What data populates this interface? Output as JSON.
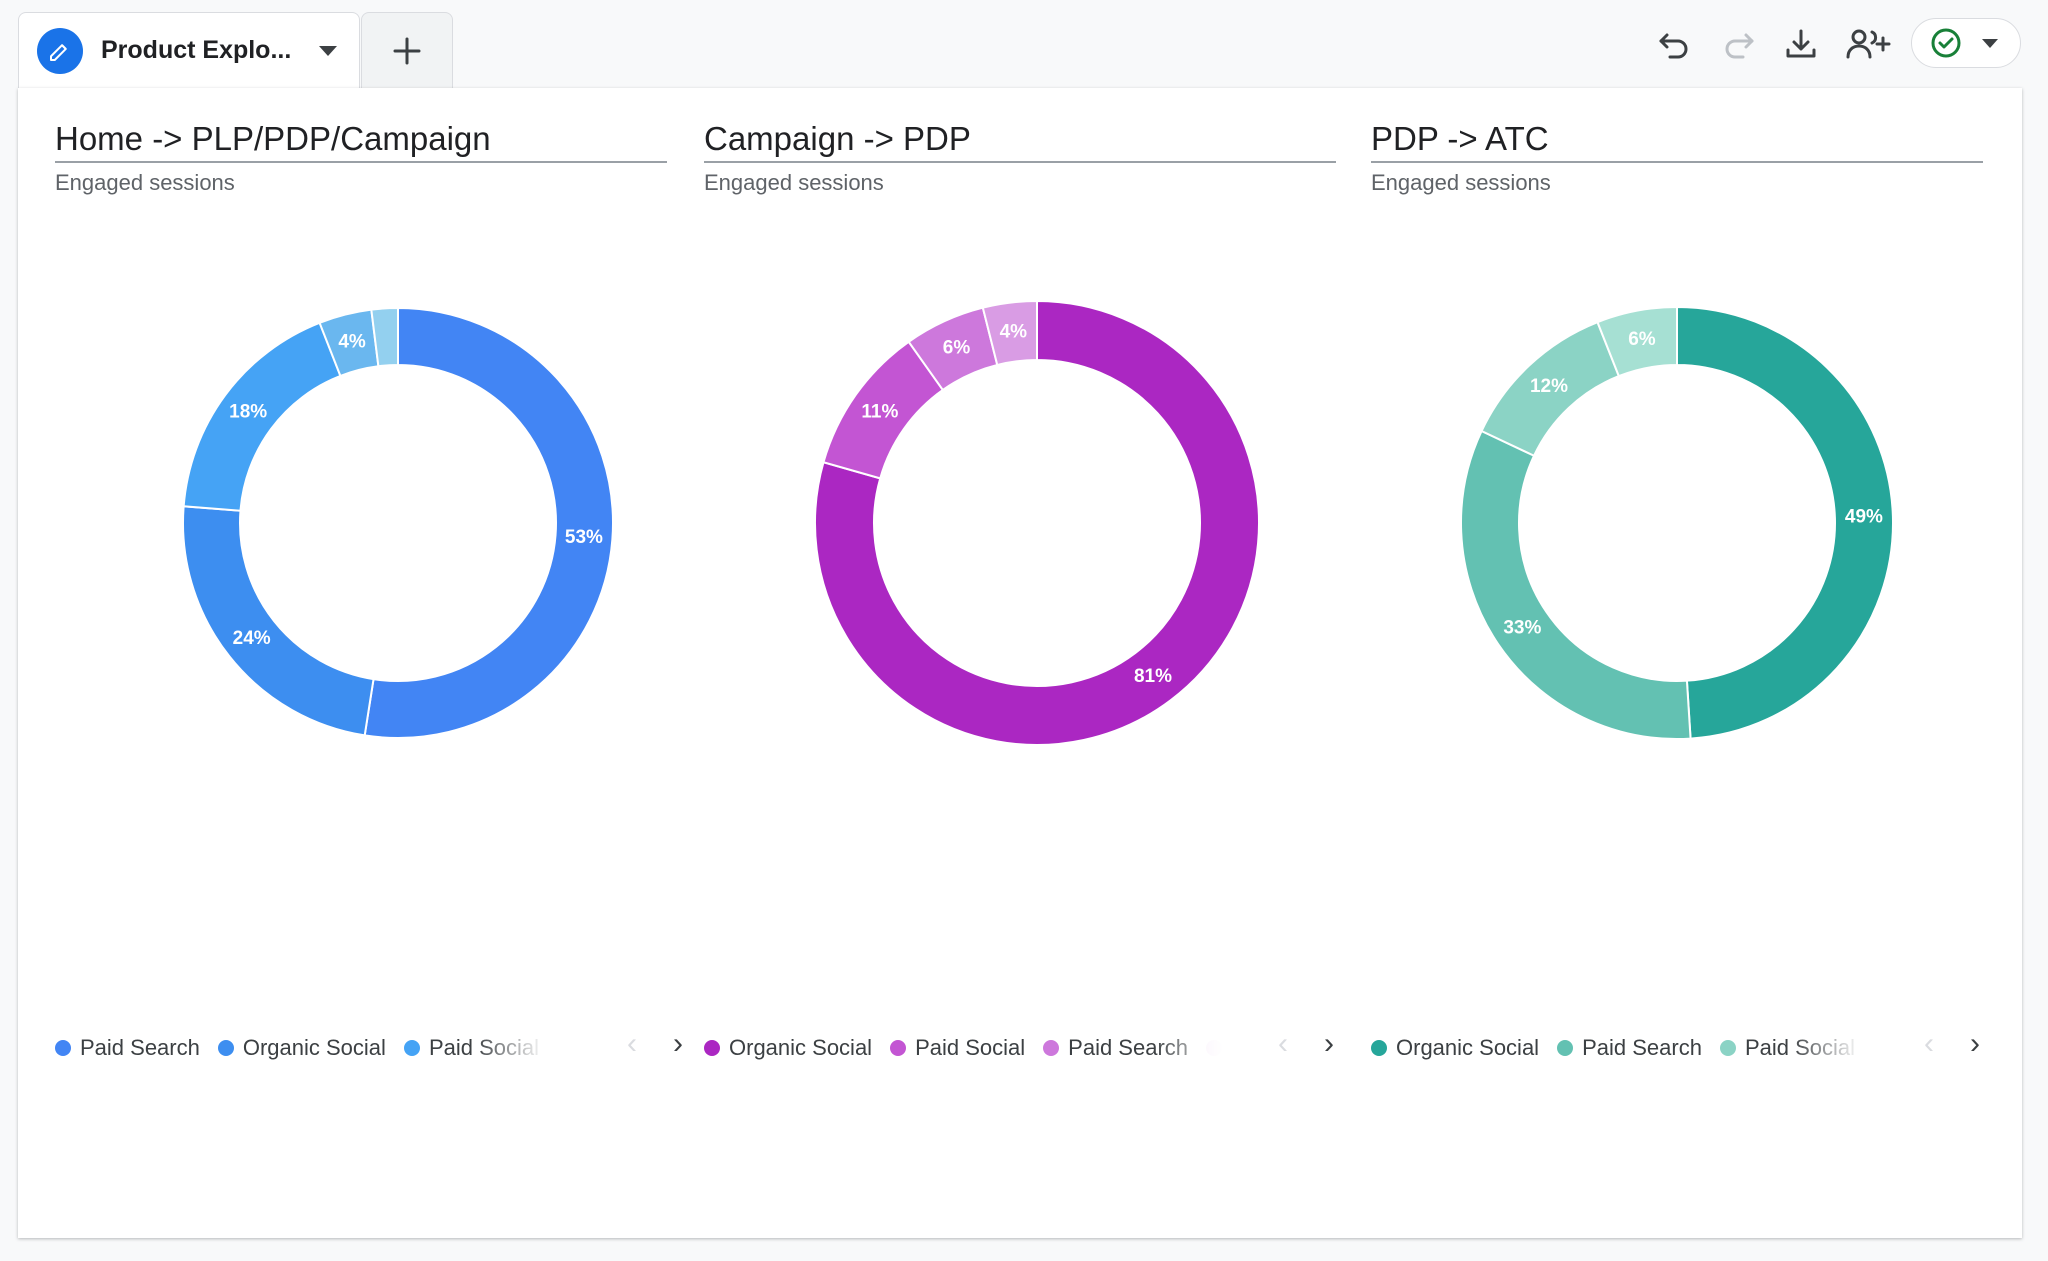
{
  "tab": {
    "title": "Product Explo...",
    "icon": "pencil-icon"
  },
  "toolbar": {
    "undo_icon": "undo-icon",
    "redo_icon": "redo-icon",
    "download_icon": "download-icon",
    "share_icon": "add-person-icon",
    "status_icon": "check-circle-icon"
  },
  "colors": {
    "blue": [
      "#4285f4",
      "#3d8ef0",
      "#45a3f5",
      "#6ab7ef",
      "#93d0ef"
    ],
    "purple": [
      "#ab27c2",
      "#c355d3",
      "#cd78dc",
      "#d99ce4"
    ],
    "teal": [
      "#26a69a",
      "#63c1b2",
      "#8bd3c5",
      "#a6e0d3"
    ]
  },
  "chart_data": [
    {
      "type": "pie",
      "title": "Home -> PLP/PDP/Campaign",
      "subtitle": "Engaged sessions",
      "legend": [
        "Paid Search",
        "Organic Social",
        "Paid Social"
      ],
      "legend_position": "bottom",
      "slices": [
        {
          "value": 53,
          "label": "53%"
        },
        {
          "value": 24,
          "label": "24%"
        },
        {
          "value": 18,
          "label": "18%"
        },
        {
          "value": 4,
          "label": "4%"
        },
        {
          "value": 2,
          "label": ""
        }
      ]
    },
    {
      "type": "pie",
      "title": "Campaign -> PDP",
      "subtitle": "Engaged sessions",
      "legend": [
        "Organic Social",
        "Paid Social",
        "Paid Search"
      ],
      "legend_position": "bottom",
      "slices": [
        {
          "value": 81,
          "label": "81%"
        },
        {
          "value": 11,
          "label": "11%"
        },
        {
          "value": 6,
          "label": "6%"
        },
        {
          "value": 4,
          "label": "4%"
        }
      ]
    },
    {
      "type": "pie",
      "title": "PDP -> ATC",
      "subtitle": "Engaged sessions",
      "legend": [
        "Organic Social",
        "Paid Search",
        "Paid Social"
      ],
      "legend_position": "bottom",
      "slices": [
        {
          "value": 49,
          "label": "49%"
        },
        {
          "value": 33,
          "label": "33%"
        },
        {
          "value": 12,
          "label": "12%"
        },
        {
          "value": 6,
          "label": "6%"
        }
      ]
    }
  ],
  "pager": {
    "prev": "‹",
    "next": "›"
  }
}
